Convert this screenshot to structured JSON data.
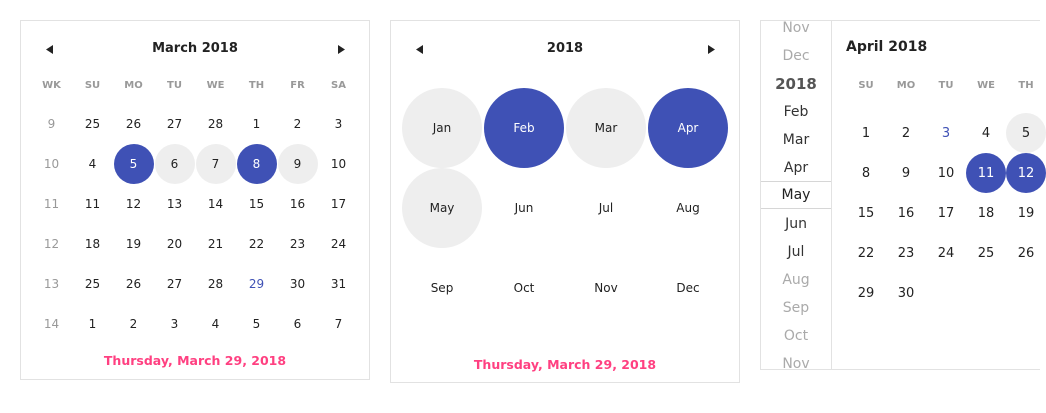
{
  "colors": {
    "accent": "#3f51b5",
    "range": "#eeeeee",
    "footer": "#ff4081",
    "muted": "#999999"
  },
  "icons": {
    "prev": "chevron-left-icon",
    "next": "chevron-right-icon"
  },
  "day_calendar": {
    "title": "March 2018",
    "headers": [
      "WK",
      "SU",
      "MO",
      "TU",
      "WE",
      "TH",
      "FR",
      "SA"
    ],
    "weeks": [
      {
        "wk": "9",
        "days": [
          "25",
          "26",
          "27",
          "28",
          "1",
          "2",
          "3"
        ]
      },
      {
        "wk": "10",
        "days": [
          "4",
          "5",
          "6",
          "7",
          "8",
          "9",
          "10"
        ]
      },
      {
        "wk": "11",
        "days": [
          "11",
          "12",
          "13",
          "14",
          "15",
          "16",
          "17"
        ]
      },
      {
        "wk": "12",
        "days": [
          "18",
          "19",
          "20",
          "21",
          "22",
          "23",
          "24"
        ]
      },
      {
        "wk": "13",
        "days": [
          "25",
          "26",
          "27",
          "28",
          "29",
          "30",
          "31"
        ]
      },
      {
        "wk": "14",
        "days": [
          "1",
          "2",
          "3",
          "4",
          "5",
          "6",
          "7"
        ]
      }
    ],
    "footer": "Thursday, March 29, 2018"
  },
  "month_calendar": {
    "title": "2018",
    "months": [
      "Jan",
      "Feb",
      "Mar",
      "Apr",
      "May",
      "Jun",
      "Jul",
      "Aug",
      "Sep",
      "Oct",
      "Nov",
      "Dec"
    ],
    "footer": "Thursday, March 29, 2018"
  },
  "scroll_calendar": {
    "picker_items": [
      "Nov",
      "Dec",
      "2018",
      "Feb",
      "Mar",
      "Apr",
      "May",
      "Jun",
      "Jul",
      "Aug",
      "Sep",
      "Oct",
      "Nov"
    ],
    "current_item": "May",
    "title": "April 2018",
    "headers": [
      "SU",
      "MO",
      "TU",
      "WE",
      "TH"
    ],
    "weeks": [
      [
        "",
        "",
        "",
        "",
        ""
      ],
      [
        "1",
        "2",
        "3",
        "4",
        "5"
      ],
      [
        "8",
        "9",
        "10",
        "11",
        "12"
      ],
      [
        "15",
        "16",
        "17",
        "18",
        "19"
      ],
      [
        "22",
        "23",
        "24",
        "25",
        "26"
      ],
      [
        "29",
        "30",
        "",
        "",
        ""
      ]
    ]
  }
}
